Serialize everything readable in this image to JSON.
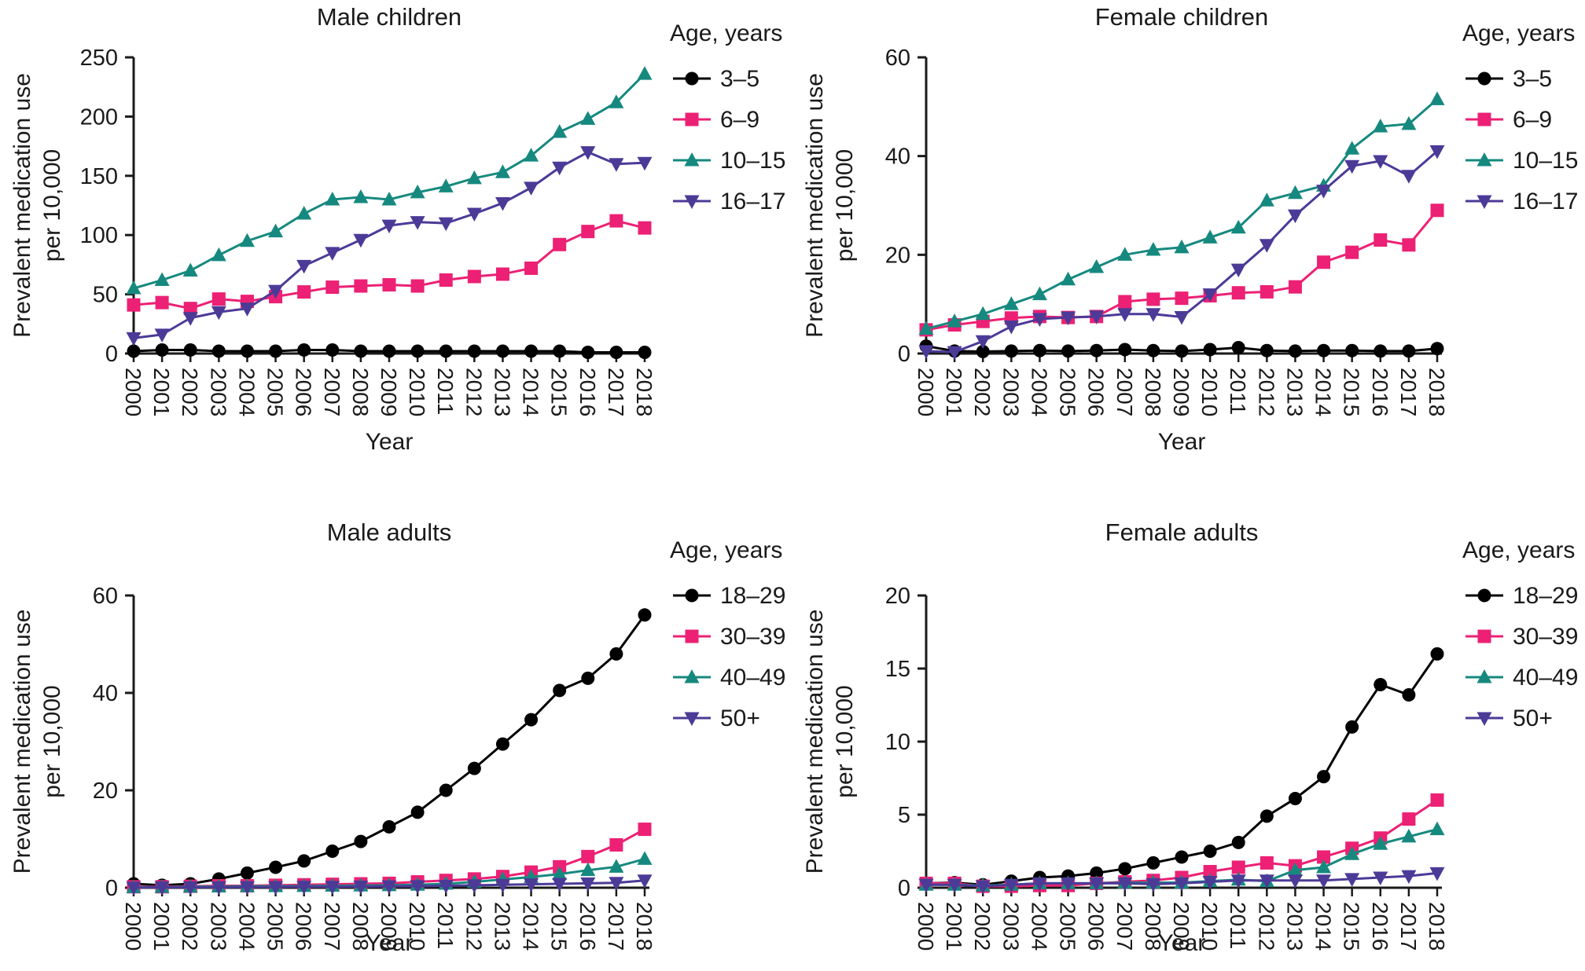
{
  "figure": {
    "ylabel_line1": "Prevalent medication use",
    "ylabel_line2": "per 10,000",
    "xlabel": "Year",
    "legend_title": "Age, years"
  },
  "colors": {
    "black": "#000000",
    "pink": "#EC2074",
    "teal": "#16897F",
    "purple": "#4C3A97",
    "text": "#1a1a1a"
  },
  "chart_data": [
    {
      "id": "male-children",
      "type": "line",
      "title": "Male children",
      "xlabel": "Year",
      "ylabel": "Prevalent medication use",
      "ylabel2": "per 10,000",
      "legend_title": "Age, years",
      "legend_position": "right",
      "grid": false,
      "x": [
        2000,
        2001,
        2002,
        2003,
        2004,
        2005,
        2006,
        2007,
        2008,
        2009,
        2010,
        2011,
        2012,
        2013,
        2014,
        2015,
        2016,
        2017,
        2018
      ],
      "ylim": [
        0,
        250
      ],
      "yticks": [
        0,
        50,
        100,
        150,
        200,
        250
      ],
      "series": [
        {
          "name": "3–5",
          "marker": "circle",
          "color": "black",
          "values": [
            2,
            3,
            3,
            2,
            2,
            2,
            3,
            3,
            2,
            2,
            2,
            2,
            2,
            2,
            2,
            2,
            1,
            1,
            1
          ]
        },
        {
          "name": "6–9",
          "marker": "square",
          "color": "pink",
          "values": [
            41,
            43,
            38,
            46,
            44,
            48,
            52,
            56,
            57,
            58,
            57,
            62,
            65,
            67,
            72,
            92,
            103,
            112,
            106
          ]
        },
        {
          "name": "10–15",
          "marker": "triangle-up",
          "color": "teal",
          "values": [
            55,
            62,
            70,
            83,
            95,
            103,
            118,
            130,
            132,
            130,
            136,
            141,
            148,
            153,
            167,
            187,
            198,
            212,
            236
          ]
        },
        {
          "name": "16–17",
          "marker": "triangle-down",
          "color": "purple",
          "values": [
            13,
            16,
            30,
            35,
            38,
            53,
            74,
            85,
            96,
            108,
            111,
            110,
            118,
            127,
            140,
            157,
            170,
            160,
            161
          ]
        }
      ]
    },
    {
      "id": "female-children",
      "type": "line",
      "title": "Female children",
      "xlabel": "Year",
      "ylabel": "Prevalent medication use",
      "ylabel2": "per 10,000",
      "legend_title": "Age, years",
      "legend_position": "right",
      "grid": false,
      "x": [
        2000,
        2001,
        2002,
        2003,
        2004,
        2005,
        2006,
        2007,
        2008,
        2009,
        2010,
        2011,
        2012,
        2013,
        2014,
        2015,
        2016,
        2017,
        2018
      ],
      "ylim": [
        0,
        60
      ],
      "yticks": [
        0,
        20,
        40,
        60
      ],
      "series": [
        {
          "name": "3–5",
          "marker": "circle",
          "color": "black",
          "values": [
            1.5,
            0.5,
            0.4,
            0.5,
            0.6,
            0.5,
            0.6,
            0.8,
            0.6,
            0.5,
            0.8,
            1.2,
            0.6,
            0.5,
            0.6,
            0.6,
            0.5,
            0.5,
            1
          ]
        },
        {
          "name": "6–9",
          "marker": "square",
          "color": "pink",
          "values": [
            4.8,
            5.8,
            6.5,
            7.2,
            7.5,
            7.3,
            7.5,
            10.5,
            11,
            11.2,
            11.7,
            12.3,
            12.5,
            13.5,
            18.5,
            20.5,
            23,
            22,
            29
          ]
        },
        {
          "name": "10–15",
          "marker": "triangle-up",
          "color": "teal",
          "values": [
            5,
            6.5,
            8,
            10,
            12,
            15,
            17.5,
            20,
            21,
            21.5,
            23.5,
            25.5,
            31,
            32.5,
            34,
            41.5,
            46,
            46.5,
            51.5
          ]
        },
        {
          "name": "16–17",
          "marker": "triangle-down",
          "color": "purple",
          "values": [
            0.5,
            0.3,
            2.5,
            5.5,
            7,
            7.3,
            7.5,
            8,
            8,
            7.4,
            12,
            17,
            22,
            28,
            33,
            38,
            39,
            36,
            41
          ]
        }
      ]
    },
    {
      "id": "male-adults",
      "type": "line",
      "title": "Male adults",
      "xlabel": "Year",
      "ylabel": "Prevalent medication use",
      "ylabel2": "per 10,000",
      "legend_title": "Age, years",
      "legend_position": "right",
      "grid": false,
      "x": [
        2000,
        2001,
        2002,
        2003,
        2004,
        2005,
        2006,
        2007,
        2008,
        2009,
        2010,
        2011,
        2012,
        2013,
        2014,
        2015,
        2016,
        2017,
        2018
      ],
      "ylim": [
        0,
        60
      ],
      "yticks": [
        0,
        20,
        40,
        60
      ],
      "series": [
        {
          "name": "18–29",
          "marker": "circle",
          "color": "black",
          "values": [
            0.8,
            0.5,
            0.8,
            1.8,
            3,
            4.2,
            5.5,
            7.5,
            9.5,
            12.5,
            15.5,
            20,
            24.5,
            29.5,
            34.5,
            40.5,
            43,
            48,
            56
          ]
        },
        {
          "name": "30–39",
          "marker": "square",
          "color": "pink",
          "values": [
            0.2,
            0.2,
            0.3,
            0.4,
            0.4,
            0.5,
            0.6,
            0.7,
            0.8,
            0.9,
            1.2,
            1.5,
            1.8,
            2.3,
            3.2,
            4.3,
            6.4,
            8.8,
            12
          ]
        },
        {
          "name": "40–49",
          "marker": "triangle-up",
          "color": "teal",
          "values": [
            0.1,
            0.15,
            0.2,
            0.25,
            0.3,
            0.3,
            0.35,
            0.4,
            0.45,
            0.5,
            0.6,
            0.8,
            1.2,
            1.7,
            2.2,
            2.8,
            3.6,
            4.3,
            5.9
          ]
        },
        {
          "name": "50+",
          "marker": "triangle-down",
          "color": "purple",
          "values": [
            0.05,
            0.1,
            0.1,
            0.1,
            0.15,
            0.15,
            0.2,
            0.2,
            0.25,
            0.3,
            0.35,
            0.4,
            0.5,
            0.6,
            0.7,
            0.8,
            0.9,
            1,
            1.5
          ]
        }
      ]
    },
    {
      "id": "female-adults",
      "type": "line",
      "title": "Female adults",
      "xlabel": "Year",
      "ylabel": "Prevalent medication use",
      "ylabel2": "per 10,000",
      "legend_title": "Age, years",
      "legend_position": "right",
      "grid": false,
      "x": [
        2000,
        2001,
        2002,
        2003,
        2004,
        2005,
        2006,
        2007,
        2008,
        2009,
        2010,
        2011,
        2012,
        2013,
        2014,
        2015,
        2016,
        2017,
        2018
      ],
      "ylim": [
        0,
        20
      ],
      "yticks": [
        0,
        5,
        10,
        15,
        20
      ],
      "series": [
        {
          "name": "18–29",
          "marker": "circle",
          "color": "black",
          "values": [
            0.3,
            0.35,
            0.2,
            0.45,
            0.7,
            0.8,
            1,
            1.3,
            1.7,
            2.1,
            2.5,
            3.1,
            4.9,
            6.1,
            7.6,
            11,
            13.9,
            13.2,
            16
          ]
        },
        {
          "name": "30–39",
          "marker": "square",
          "color": "pink",
          "values": [
            0.3,
            0.3,
            0.1,
            0.1,
            0.15,
            0.15,
            0.3,
            0.4,
            0.5,
            0.7,
            1.1,
            1.4,
            1.7,
            1.5,
            2.1,
            2.7,
            3.4,
            4.7,
            6
          ]
        },
        {
          "name": "40–49",
          "marker": "triangle-up",
          "color": "teal",
          "values": [
            0.2,
            0.2,
            0.15,
            0.2,
            0.3,
            0.3,
            0.3,
            0.35,
            0.35,
            0.35,
            0.45,
            0.55,
            0.45,
            1.2,
            1.4,
            2.3,
            3,
            3.5,
            4
          ]
        },
        {
          "name": "50+",
          "marker": "triangle-down",
          "color": "purple",
          "values": [
            0.2,
            0.2,
            0.1,
            0.2,
            0.3,
            0.3,
            0.3,
            0.3,
            0.25,
            0.3,
            0.4,
            0.5,
            0.5,
            0.5,
            0.5,
            0.6,
            0.7,
            0.8,
            1
          ]
        }
      ]
    }
  ]
}
